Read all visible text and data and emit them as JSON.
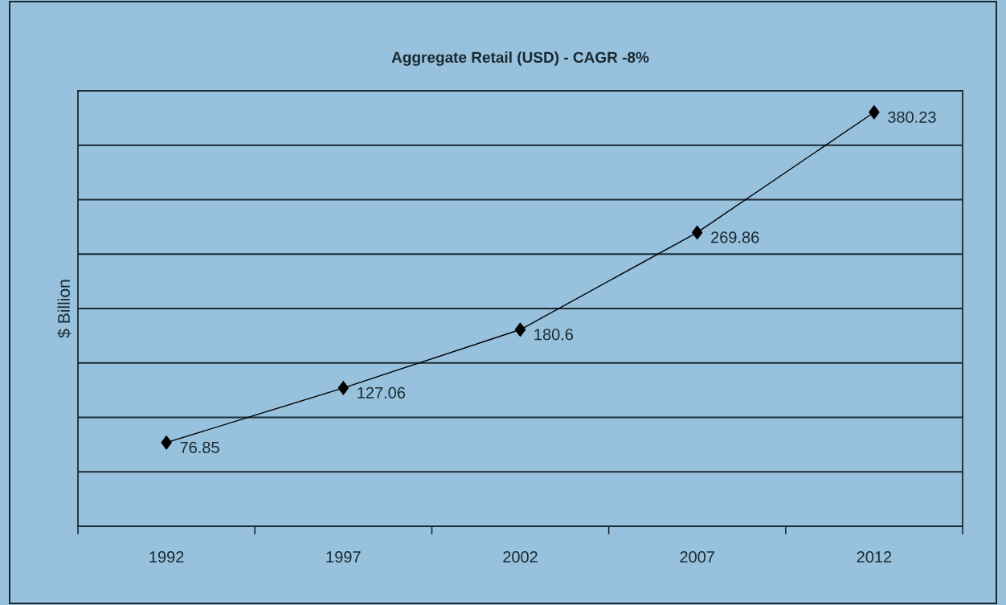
{
  "chart_data": {
    "type": "line",
    "title": "Aggregate Retail (USD) - CAGR -8%",
    "ylabel": "$ Billion",
    "categories": [
      "1992",
      "1997",
      "2002",
      "2007",
      "2012"
    ],
    "values": [
      76.85,
      127.06,
      180.6,
      269.86,
      380.23
    ],
    "color": "#000000",
    "marker": "diamond",
    "line_style": "solid",
    "data_labels": true,
    "ylim": [
      0,
      400
    ],
    "yticks": [
      {
        "value": 0,
        "label": null
      },
      {
        "value": 50,
        "label": null
      },
      {
        "value": 100,
        "label": null
      },
      {
        "value": 150,
        "label": null
      },
      {
        "value": 200,
        "label": null
      },
      {
        "value": 250,
        "label": null
      },
      {
        "value": 300,
        "label": null
      },
      {
        "value": 350,
        "label": null
      },
      {
        "value": 400,
        "label": null
      }
    ],
    "grid": "y",
    "tick_labels": "x"
  }
}
